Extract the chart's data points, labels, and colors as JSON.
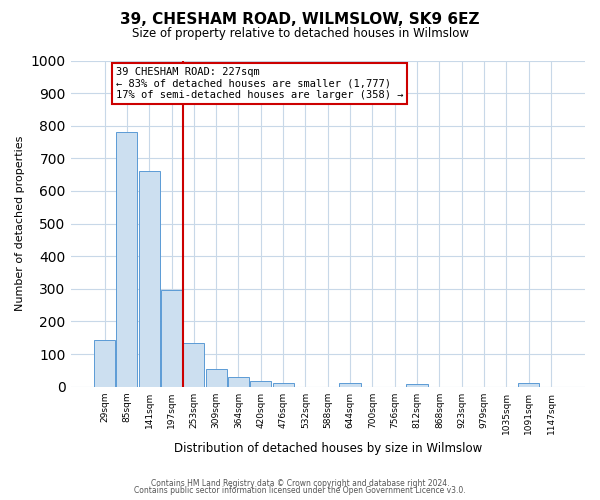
{
  "title": "39, CHESHAM ROAD, WILMSLOW, SK9 6EZ",
  "subtitle": "Size of property relative to detached houses in Wilmslow",
  "bar_labels": [
    "29sqm",
    "85sqm",
    "141sqm",
    "197sqm",
    "253sqm",
    "309sqm",
    "364sqm",
    "420sqm",
    "476sqm",
    "532sqm",
    "588sqm",
    "644sqm",
    "700sqm",
    "756sqm",
    "812sqm",
    "868sqm",
    "923sqm",
    "979sqm",
    "1035sqm",
    "1091sqm",
    "1147sqm"
  ],
  "bar_values": [
    143,
    780,
    660,
    295,
    135,
    55,
    30,
    18,
    10,
    0,
    0,
    12,
    0,
    0,
    8,
    0,
    0,
    0,
    0,
    10,
    0
  ],
  "bar_color": "#ccdff0",
  "bar_edge_color": "#5b9bd5",
  "ylabel": "Number of detached properties",
  "xlabel": "Distribution of detached houses by size in Wilmslow",
  "ylim": [
    0,
    1000
  ],
  "yticks": [
    0,
    100,
    200,
    300,
    400,
    500,
    600,
    700,
    800,
    900,
    1000
  ],
  "vline_color": "#cc0000",
  "annotation_title": "39 CHESHAM ROAD: 227sqm",
  "annotation_line1": "← 83% of detached houses are smaller (1,777)",
  "annotation_line2": "17% of semi-detached houses are larger (358) →",
  "annotation_box_color": "#cc0000",
  "footer_line1": "Contains HM Land Registry data © Crown copyright and database right 2024.",
  "footer_line2": "Contains public sector information licensed under the Open Government Licence v3.0.",
  "bg_color": "#ffffff",
  "plot_bg_color": "#ffffff",
  "grid_color": "#c8d8e8"
}
